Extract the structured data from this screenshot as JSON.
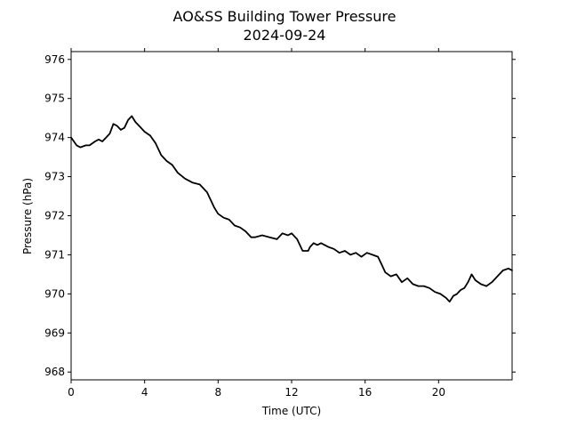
{
  "chart_data": {
    "type": "line",
    "title": "AO&SS Building Tower Pressure",
    "subtitle": "2024-09-24",
    "xlabel": "Time (UTC)",
    "ylabel": "Pressure (hPa)",
    "xlim": [
      0,
      24
    ],
    "ylim": [
      967.8,
      976.2
    ],
    "x_ticks": [
      0,
      4,
      8,
      12,
      16,
      20
    ],
    "y_ticks": [
      968,
      969,
      970,
      971,
      972,
      973,
      974,
      975,
      976
    ],
    "grid": false,
    "line_color": "#000000",
    "series": [
      {
        "x": [
          0,
          0.3,
          0.5,
          0.8,
          1.0,
          1.3,
          1.5,
          1.7,
          1.9,
          2.1,
          2.3,
          2.5,
          2.7,
          2.9,
          3.1,
          3.3,
          3.5,
          3.7,
          4.0,
          4.3,
          4.6,
          4.9,
          5.2,
          5.5,
          5.8,
          6.2,
          6.6,
          7.0,
          7.4,
          7.8,
          8.0,
          8.3,
          8.6,
          8.9,
          9.2,
          9.5,
          9.8,
          10.0,
          10.4,
          10.8,
          11.2,
          11.5,
          11.8,
          12.0,
          12.3,
          12.6,
          12.9,
          13.0,
          13.2,
          13.4,
          13.6,
          13.8,
          14.0,
          14.3,
          14.6,
          14.9,
          15.2,
          15.5,
          15.8,
          16.1,
          16.4,
          16.7,
          16.9,
          17.1,
          17.4,
          17.7,
          18.0,
          18.3,
          18.6,
          18.9,
          19.2,
          19.5,
          19.8,
          20.1,
          20.4,
          20.6,
          20.8,
          21.0,
          21.2,
          21.4,
          21.6,
          21.8,
          22.0,
          22.3,
          22.6,
          22.9,
          23.2,
          23.5,
          23.8,
          24.0
        ],
        "y": [
          974.0,
          973.8,
          973.75,
          973.8,
          973.8,
          973.9,
          973.95,
          973.9,
          974.0,
          974.1,
          974.35,
          974.3,
          974.2,
          974.25,
          974.45,
          974.55,
          974.4,
          974.3,
          974.15,
          974.05,
          973.85,
          973.55,
          973.4,
          973.3,
          973.1,
          972.95,
          972.85,
          972.8,
          972.6,
          972.2,
          972.05,
          971.95,
          971.9,
          971.75,
          971.7,
          971.6,
          971.45,
          971.45,
          971.5,
          971.45,
          971.4,
          971.55,
          971.5,
          971.55,
          971.4,
          971.1,
          971.1,
          971.2,
          971.3,
          971.25,
          971.3,
          971.25,
          971.2,
          971.15,
          971.05,
          971.1,
          971.0,
          971.05,
          970.95,
          971.05,
          971.0,
          970.95,
          970.75,
          970.55,
          970.45,
          970.5,
          970.3,
          970.4,
          970.25,
          970.2,
          970.2,
          970.15,
          970.05,
          970.0,
          969.9,
          969.8,
          969.95,
          970.0,
          970.1,
          970.15,
          970.3,
          970.5,
          970.35,
          970.25,
          970.2,
          970.3,
          970.45,
          970.6,
          970.65,
          970.6
        ]
      }
    ]
  }
}
